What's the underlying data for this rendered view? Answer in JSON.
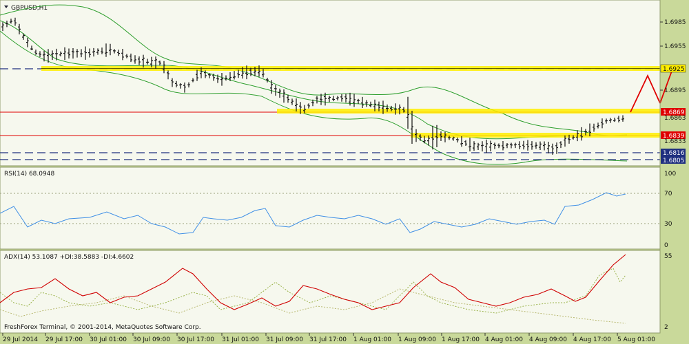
{
  "main": {
    "symbol_label": "GBPUSD,H1",
    "prices": [
      "1.6985",
      "1.6955",
      "1.6895"
    ],
    "tags": {
      "upper_line": "1.6925",
      "red_1": "1.6869",
      "under_red_1": "1.6863",
      "red_2": "1.6839",
      "under_red_2": "1.6833",
      "dash_1": "1.6816",
      "dash_2": "1.6805"
    }
  },
  "rsi": {
    "label": "RSI(14) 68.0948",
    "levels": [
      "100",
      "70",
      "30",
      "0"
    ]
  },
  "adx": {
    "label": "ADX(14) 53.1087 +DI:38.5883 -DI:4.6602",
    "levels": [
      "55",
      "2"
    ]
  },
  "footer": {
    "copyright": "FreshForex Terminal, © 2001-2014, MetaQuotes Software Corp."
  },
  "time_axis": [
    "29 Jul 2014",
    "29 Jul 17:00",
    "30 Jul 01:00",
    "30 Jul 09:00",
    "30 Jul 17:00",
    "31 Jul 01:00",
    "31 Jul 09:00",
    "31 Jul 17:00",
    "1 Aug 01:00",
    "1 Aug 09:00",
    "1 Aug 17:00",
    "4 Aug 01:00",
    "4 Aug 09:00",
    "4 Aug 17:00",
    "5 Aug 01:00"
  ],
  "colors": {
    "background": "#c9d99a",
    "plot": "#f6f8ee",
    "bollinger": "#2e9f2e",
    "support_resistance": "#ffee00",
    "red_level": "#e00000",
    "rsi_line": "#3f8fe6",
    "adx_line": "#d00000",
    "di_plus": "#9ab34a",
    "di_minus": "#b8b870",
    "dash_line": "#1f2f7f"
  }
}
